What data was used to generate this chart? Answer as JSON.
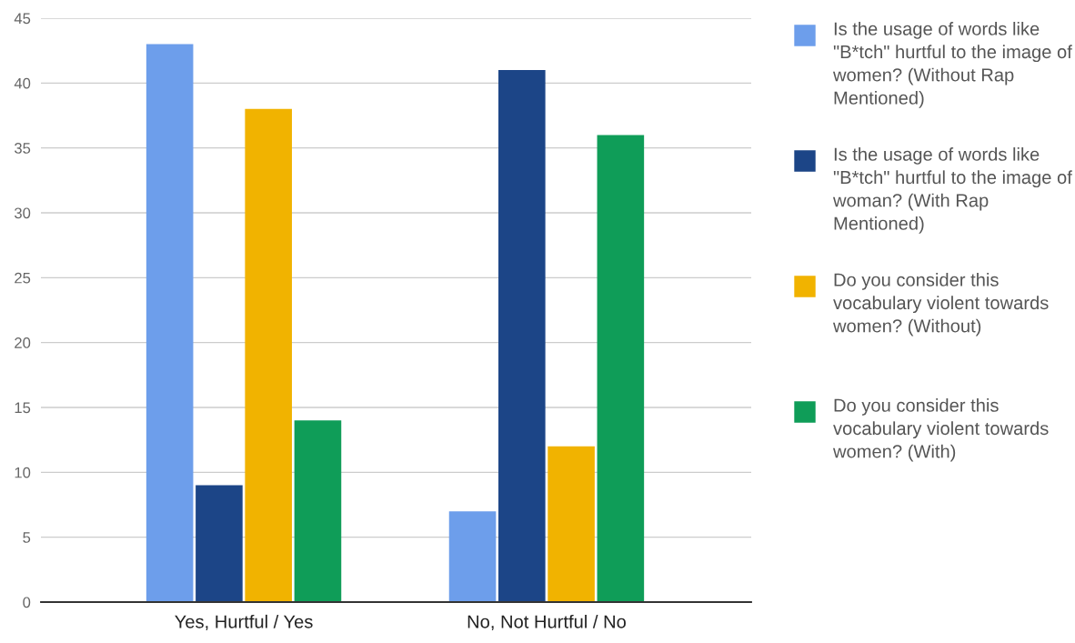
{
  "chart_data": {
    "type": "bar",
    "categories": [
      "Yes, Hurtful / Yes",
      "No, Not Hurtful / No"
    ],
    "series": [
      {
        "name": "Is the usage of words like \"B*tch\" hurtful to the image of women? (Without Rap Mentioned)",
        "color": "#6d9eeb",
        "values": [
          43,
          7
        ]
      },
      {
        "name": "Is the usage of words like \"B*tch\" hurtful to the image of woman? (With Rap Mentioned)",
        "color": "#1c4587",
        "values": [
          9,
          41
        ]
      },
      {
        "name": "Do you consider this vocabulary violent towards women? (Without)",
        "color": "#f1b300",
        "values": [
          38,
          12
        ]
      },
      {
        "name": "Do you consider this vocabulary violent towards women? (With)",
        "color": "#0f9d58",
        "values": [
          14,
          36
        ]
      }
    ],
    "ylim": [
      0,
      45
    ],
    "yticks": [
      0,
      5,
      10,
      15,
      20,
      25,
      30,
      35,
      40,
      45
    ],
    "grid": "y",
    "legend": "right"
  }
}
